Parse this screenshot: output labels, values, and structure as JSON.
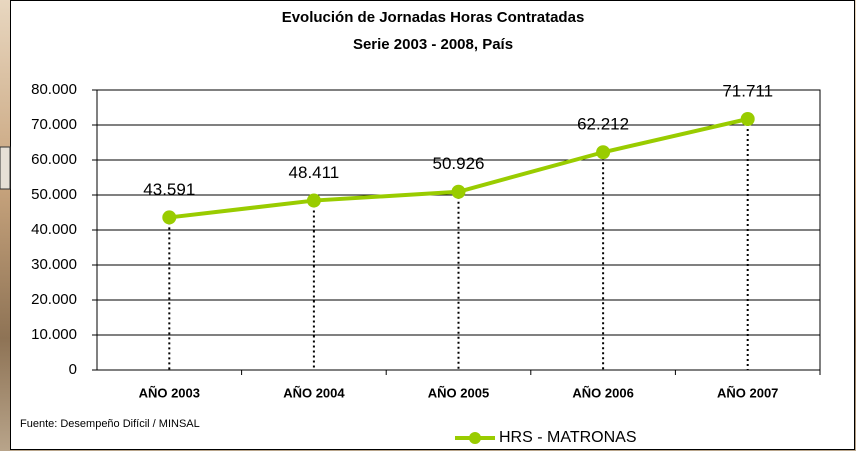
{
  "chart_data": {
    "type": "line",
    "title": "Evolución de Jornadas  Horas Contratadas",
    "subtitle": "Serie 2003 - 2008, País",
    "source": "Fuente: Desempeño Difícil / MINSAL",
    "categories": [
      "AÑO 2003",
      "AÑO 2004",
      "AÑO 2005",
      "AÑO 2006",
      "AÑO 2007"
    ],
    "series": [
      {
        "name": "HRS - MATRONAS",
        "color": "#99cc00",
        "values": [
          43591,
          48411,
          50926,
          62212,
          71711
        ],
        "value_labels": [
          "43.591",
          "48.411",
          "50.926",
          "62.212",
          "71.711"
        ]
      }
    ],
    "ylim": [
      0,
      80000
    ],
    "yticks": [
      0,
      {
        "value": 10000,
        "label": "10.000"
      },
      {
        "value": 20000,
        "label": "20.000"
      },
      {
        "value": 30000,
        "label": "30.000"
      },
      {
        "value": 40000,
        "label": "40.000"
      },
      {
        "value": 50000,
        "label": "50.000"
      },
      {
        "value": 60000,
        "label": "60.000"
      },
      {
        "value": 70000,
        "label": "70.000"
      },
      {
        "value": 80000,
        "label": "80.000"
      }
    ],
    "grid": true,
    "legend": "bottom"
  }
}
